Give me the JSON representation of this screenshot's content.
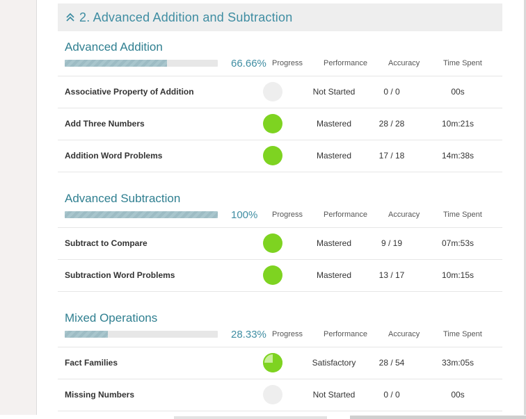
{
  "chapter": {
    "title": "2.  Advanced Addition and Subtraction"
  },
  "columns": {
    "progress": "Progress",
    "performance": "Performance",
    "accuracy": "Accuracy",
    "time_spent": "Time Spent"
  },
  "colors": {
    "accent": "#3f8da2",
    "mastered": "#7ed321",
    "not_started": "#eeeeee"
  },
  "sections": [
    {
      "title": "Advanced Addition",
      "progress_label": "66.66%",
      "progress_fraction": 0.6666,
      "rows": [
        {
          "name": "Associative Property of Addition",
          "performance": "Not Started",
          "accuracy": "0 / 0",
          "time": "00s",
          "status": "not-started"
        },
        {
          "name": "Add Three Numbers",
          "performance": "Mastered",
          "accuracy": "28 / 28",
          "time": "10m:21s",
          "status": "mastered"
        },
        {
          "name": "Addition Word Problems",
          "performance": "Mastered",
          "accuracy": "17 / 18",
          "time": "14m:38s",
          "status": "mastered"
        }
      ]
    },
    {
      "title": "Advanced Subtraction",
      "progress_label": "100%",
      "progress_fraction": 1.0,
      "rows": [
        {
          "name": "Subtract to Compare",
          "performance": "Mastered",
          "accuracy": "9 / 19",
          "time": "07m:53s",
          "status": "mastered"
        },
        {
          "name": "Subtraction Word Problems",
          "performance": "Mastered",
          "accuracy": "13 / 17",
          "time": "10m:15s",
          "status": "mastered"
        }
      ]
    },
    {
      "title": "Mixed Operations",
      "progress_label": "28.33%",
      "progress_fraction": 0.2833,
      "rows": [
        {
          "name": "Fact Families",
          "performance": "Satisfactory",
          "accuracy": "28 / 54",
          "time": "33m:05s",
          "status": "satisfactory",
          "status_fraction": 0.75
        },
        {
          "name": "Missing Numbers",
          "performance": "Not Started",
          "accuracy": "0 / 0",
          "time": "00s",
          "status": "not-started"
        }
      ]
    }
  ]
}
